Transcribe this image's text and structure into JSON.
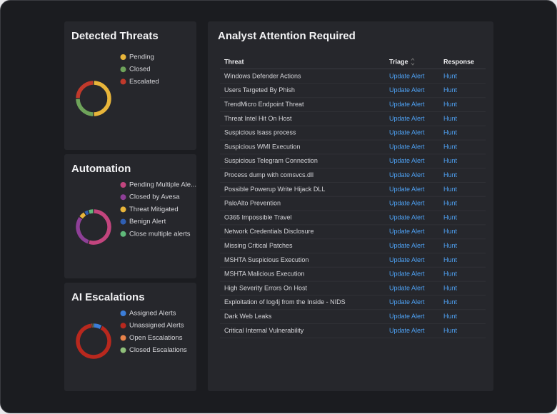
{
  "chart_data": [
    {
      "type": "donut",
      "title": "Detected Threats",
      "categories": [
        "Pending",
        "Closed",
        "Escalated"
      ],
      "values": [
        50,
        25,
        25
      ],
      "colors": [
        "#e8b53a",
        "#6ea35a",
        "#c0392b"
      ]
    },
    {
      "type": "donut",
      "title": "Automation",
      "categories": [
        "Pending Multiple Ale...",
        "Closed by Avesa",
        "Threat Mitigated",
        "Benign Alert",
        "Close multiple alerts"
      ],
      "values": [
        55,
        30,
        6,
        4,
        5
      ],
      "colors": [
        "#c2457e",
        "#8e3f97",
        "#e8b53a",
        "#2f5fb3",
        "#5fb97a"
      ]
    },
    {
      "type": "donut",
      "title": "AI Escalations",
      "categories": [
        "Assigned Alerts",
        "Unassigned Alerts",
        "Open Escalations",
        "Closed Escalations"
      ],
      "values": [
        8,
        90,
        1,
        1
      ],
      "colors": [
        "#3b7dd8",
        "#b8281e",
        "#e8834a",
        "#8fbf7a"
      ]
    }
  ],
  "table": {
    "title": "Analyst Attention Required",
    "columns": [
      "Threat",
      "Triage",
      "Response"
    ],
    "rows": [
      [
        "Windows Defender Actions",
        "Update Alert",
        "Hunt"
      ],
      [
        "Users Targeted By Phish",
        "Update Alert",
        "Hunt"
      ],
      [
        "TrendMicro Endpoint Threat",
        "Update Alert",
        "Hunt"
      ],
      [
        "Threat Intel Hit On Host",
        "Update Alert",
        "Hunt"
      ],
      [
        "Suspicious lsass process",
        "Update Alert",
        "Hunt"
      ],
      [
        "Suspicious WMI Execution",
        "Update Alert",
        "Hunt"
      ],
      [
        "Suspicious Telegram Connection",
        "Update Alert",
        "Hunt"
      ],
      [
        "Process dump with comsvcs.dll",
        "Update Alert",
        "Hunt"
      ],
      [
        "Possible Powerup Write Hijack DLL",
        "Update Alert",
        "Hunt"
      ],
      [
        "PaloAlto Prevention",
        "Update Alert",
        "Hunt"
      ],
      [
        "O365 Impossible Travel",
        "Update Alert",
        "Hunt"
      ],
      [
        "Network Credentials Disclosure",
        "Update Alert",
        "Hunt"
      ],
      [
        "Missing Critical Patches",
        "Update Alert",
        "Hunt"
      ],
      [
        "MSHTA Suspicious Execution",
        "Update Alert",
        "Hunt"
      ],
      [
        "MSHTA Malicious Execution",
        "Update Alert",
        "Hunt"
      ],
      [
        "High Severity Errors On Host",
        "Update Alert",
        "Hunt"
      ],
      [
        "Exploitation of log4j from the Inside - NIDS",
        "Update Alert",
        "Hunt"
      ],
      [
        "Dark Web Leaks",
        "Update Alert",
        "Hunt"
      ],
      [
        "Critical Internal Vulnerability",
        "Update Alert",
        "Hunt"
      ]
    ]
  }
}
